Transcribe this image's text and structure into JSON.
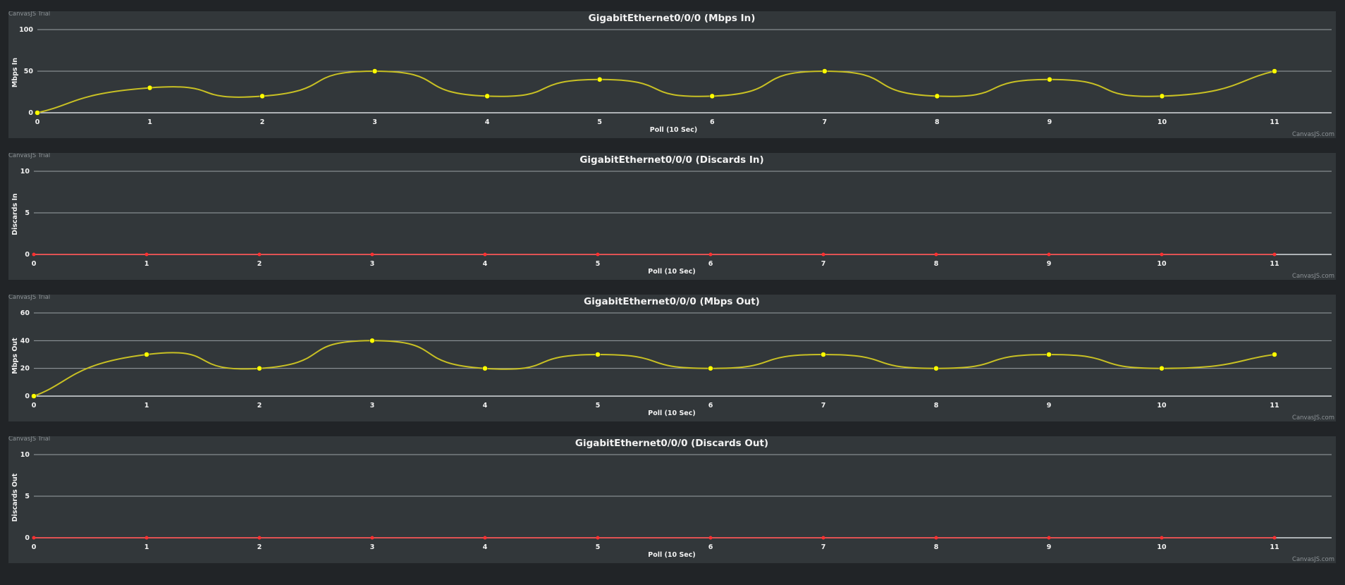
{
  "watermark_trial": "CanvasJS Trial",
  "watermark_credit": "CanvasJS.com",
  "colors": {
    "background": "#212427",
    "panel": "#32373a",
    "grid": "#9aa0a4",
    "text": "#f2f2f2",
    "yellow_line": "#c8c024",
    "yellow_marker": "#ffff00",
    "red": "#ff4040"
  },
  "chart_data": [
    {
      "type": "line",
      "title": "GigabitEthernet0/0/0 (Mbps In)",
      "xlabel": "Poll (10 Sec)",
      "ylabel": "Mbps In",
      "x": [
        0,
        1,
        2,
        3,
        4,
        5,
        6,
        7,
        8,
        9,
        10,
        11
      ],
      "y": [
        0,
        30,
        20,
        50,
        20,
        40,
        20,
        50,
        20,
        40,
        20,
        50
      ],
      "ylim": [
        0,
        100
      ],
      "yticks": [
        0,
        50,
        100
      ],
      "color": "#c8c024",
      "marker_color": "#ffff00",
      "grid": true
    },
    {
      "type": "line",
      "title": "GigabitEthernet0/0/0 (Discards In)",
      "xlabel": "Poll (10 Sec)",
      "ylabel": "Discards In",
      "x": [
        0,
        1,
        2,
        3,
        4,
        5,
        6,
        7,
        8,
        9,
        10,
        11
      ],
      "y": [
        0,
        0,
        0,
        0,
        0,
        0,
        0,
        0,
        0,
        0,
        0,
        0
      ],
      "ylim": [
        0,
        10
      ],
      "yticks": [
        0,
        5,
        10
      ],
      "color": "#ff4040",
      "marker_color": "#ff3030",
      "grid": true
    },
    {
      "type": "line",
      "title": "GigabitEthernet0/0/0 (Mbps Out)",
      "xlabel": "Poll (10 Sec)",
      "ylabel": "Mbps Out",
      "x": [
        0,
        1,
        2,
        3,
        4,
        5,
        6,
        7,
        8,
        9,
        10,
        11
      ],
      "y": [
        0,
        30,
        20,
        40,
        20,
        30,
        20,
        30,
        20,
        30,
        20,
        30
      ],
      "ylim": [
        0,
        60
      ],
      "yticks": [
        0,
        20,
        40,
        60
      ],
      "color": "#c8c024",
      "marker_color": "#ffff00",
      "grid": true
    },
    {
      "type": "line",
      "title": "GigabitEthernet0/0/0 (Discards Out)",
      "xlabel": "Poll (10 Sec)",
      "ylabel": "Discards Out",
      "x": [
        0,
        1,
        2,
        3,
        4,
        5,
        6,
        7,
        8,
        9,
        10,
        11
      ],
      "y": [
        0,
        0,
        0,
        0,
        0,
        0,
        0,
        0,
        0,
        0,
        0,
        0
      ],
      "ylim": [
        0,
        10
      ],
      "yticks": [
        0,
        5,
        10
      ],
      "color": "#ff4040",
      "marker_color": "#ff3030",
      "grid": true
    }
  ]
}
